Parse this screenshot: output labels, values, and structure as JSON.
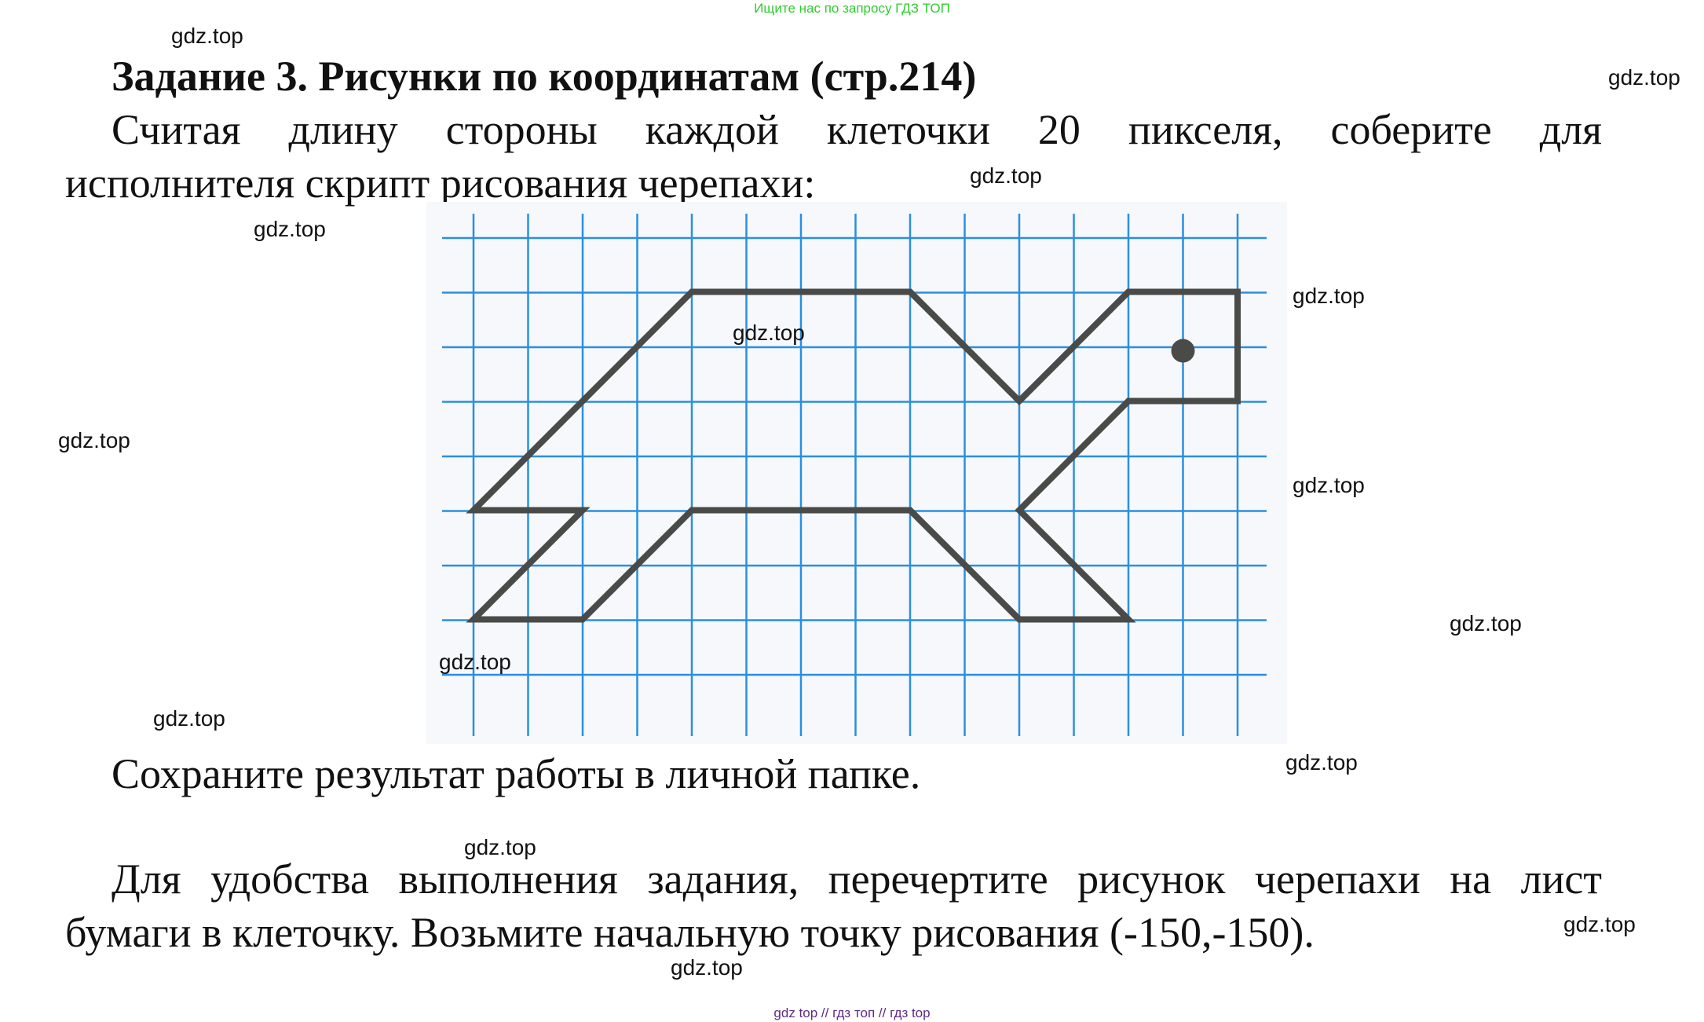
{
  "top_banner": "Ищите нас по запросу ГДЗ ТОП",
  "title": "Задание 3. Рисунки по координатам (стр.214)",
  "paragraph1": [
    "Считая длину стороны каждой клеточки 20 пикселя, соберите для",
    "исполнителя скрипт рисования черепахи:"
  ],
  "paragraph2": "Сохраните результат работы в личной папке.",
  "paragraph3": [
    "Для удобства выполнения задания, перечертите рисунок черепахи на лист",
    "бумаги в клеточку. Возьмите начальную точку рисования (-150,-150)."
  ],
  "figure": {
    "grid_color": "#2a8fe0",
    "outline_color": "#4a4a48"
  },
  "watermark": "gdz.top",
  "footer": "gdz top  //  гдз топ  //  гдз top"
}
